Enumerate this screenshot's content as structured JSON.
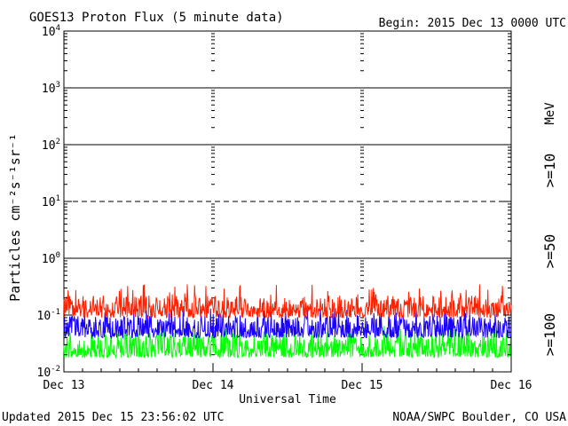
{
  "header": {
    "title": "GOES13 Proton Flux (5 minute data)",
    "begin": "Begin: 2015 Dec 13 0000 UTC"
  },
  "footer": {
    "updated": "Updated 2015 Dec 15 23:56:02 UTC",
    "credit": "NOAA/SWPC Boulder, CO USA"
  },
  "right_labels": {
    "unit": "MeV",
    "ge10": ">=10",
    "ge50": ">=50",
    "ge100": ">=100"
  },
  "colors": {
    "ge10": "#ff2000",
    "ge50": "#1a00ff",
    "ge100": "#00ff00",
    "axis": "#000000"
  },
  "chart_data": {
    "type": "line",
    "x_categories": [
      "Dec 13",
      "Dec 14",
      "Dec 15",
      "Dec 16"
    ],
    "xlabel": "Universal Time",
    "ylabel": "Particles cm⁻²s⁻¹sr⁻¹",
    "y_scale": "log",
    "ylim": [
      0.01,
      10000
    ],
    "y_ticks": [
      {
        "base": "10",
        "exp": "-2",
        "value": 0.01
      },
      {
        "base": "10",
        "exp": "-1",
        "value": 0.1
      },
      {
        "base": "10",
        "exp": "0",
        "value": 1
      },
      {
        "base": "10",
        "exp": "1",
        "value": 10
      },
      {
        "base": "10",
        "exp": "2",
        "value": 100
      },
      {
        "base": "10",
        "exp": "3",
        "value": 1000
      },
      {
        "base": "10",
        "exp": "4",
        "value": 10000
      }
    ],
    "reference_lines": [
      {
        "value": 1,
        "style": "solid"
      },
      {
        "value": 10,
        "style": "dashed"
      },
      {
        "value": 100,
        "style": "solid"
      },
      {
        "value": 1000,
        "style": "solid"
      }
    ],
    "series": [
      {
        "name": ">=10 MeV",
        "typical_range": [
          0.09,
          0.22
        ],
        "peak": 0.35
      },
      {
        "name": ">=50 MeV",
        "typical_range": [
          0.04,
          0.1
        ],
        "peak": 0.13
      },
      {
        "name": ">=100 MeV",
        "typical_range": [
          0.018,
          0.05
        ],
        "peak": 0.07
      }
    ]
  }
}
